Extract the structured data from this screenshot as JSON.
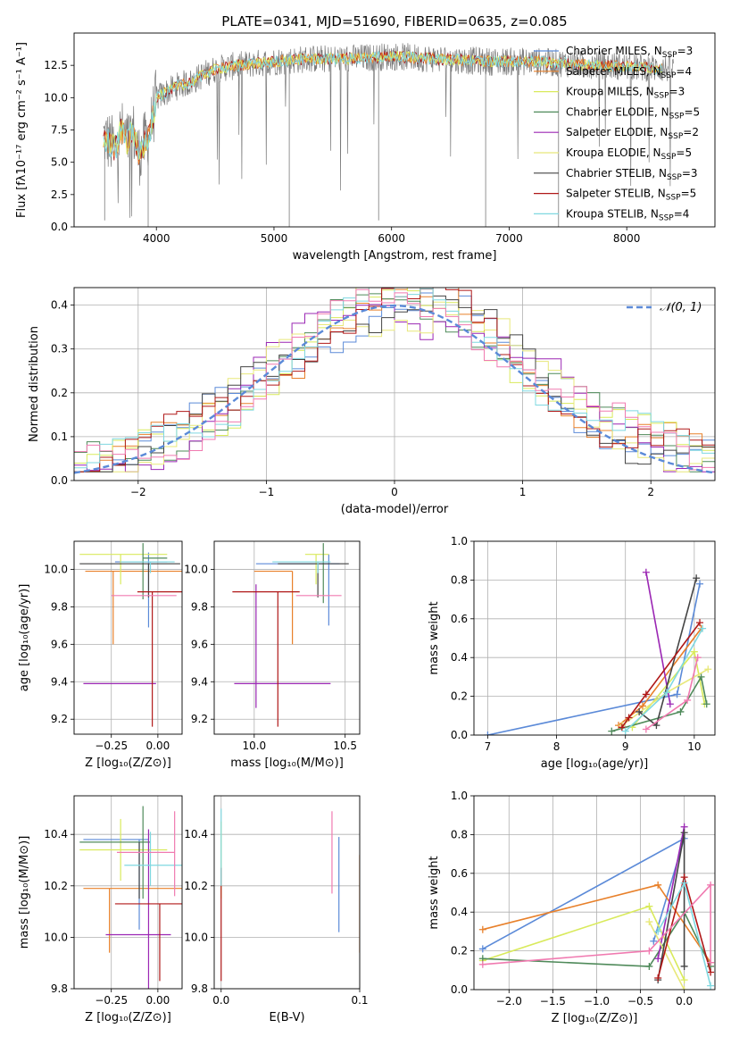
{
  "figure": {
    "title": "PLATE=0341, MJD=51690, FIBERID=0635, z=0.085"
  },
  "colors": {
    "Chabrier MILES": "#5b8ad8",
    "Salpeter MILES": "#e8802a",
    "Kroupa MILES": "#d9ea5c",
    "Chabrier ELODIE": "#4f8a5a",
    "Salpeter ELODIE": "#9b27b4",
    "Kroupa ELODIE": "#e8e87a",
    "Chabrier STELIB": "#444444",
    "Salpeter STELIB": "#b01818",
    "Kroupa STELIB": "#7fd8e0",
    "data": "#7a7a7a",
    "pink": "#f07ab0",
    "gauss": "#5b8ad8"
  },
  "chart_data": [
    {
      "id": "spectrum",
      "type": "line",
      "title": "PLATE=0341, MJD=51690, FIBERID=0635, z=0.085",
      "xlabel": "wavelength [Angstrom, rest frame]",
      "ylabel": "Flux [fλ10⁻¹⁷ erg cm⁻² s⁻¹ A⁻¹]",
      "xlim": [
        3300,
        8750
      ],
      "ylim": [
        0,
        15
      ],
      "xticks": [
        4000,
        5000,
        6000,
        7000,
        8000
      ],
      "yticks": [
        0.0,
        2.5,
        5.0,
        7.5,
        10.0,
        12.5
      ],
      "continuum": {
        "x": [
          3550,
          3600,
          3650,
          3700,
          3750,
          3800,
          3850,
          3900,
          3950,
          4000,
          4100,
          4200,
          4300,
          4400,
          4500,
          4700,
          5000,
          5300,
          5600,
          6000,
          6400,
          6800,
          7200,
          7600,
          8000,
          8400
        ],
        "y": [
          7.0,
          6.5,
          6.0,
          7.5,
          6.5,
          7.5,
          5.5,
          6.5,
          7.5,
          10.0,
          10.5,
          11.0,
          11.2,
          11.8,
          12.2,
          12.5,
          12.8,
          13.0,
          13.0,
          13.2,
          13.0,
          12.8,
          12.8,
          12.6,
          12.4,
          12.2
        ]
      },
      "legend": [
        {
          "name": "Chabrier MILES",
          "nssp": "3"
        },
        {
          "name": "Salpeter MILES",
          "nssp": "4"
        },
        {
          "name": "Kroupa MILES",
          "nssp": "3"
        },
        {
          "name": "Chabrier ELODIE",
          "nssp": "5"
        },
        {
          "name": "Salpeter ELODIE",
          "nssp": "2"
        },
        {
          "name": "Kroupa ELODIE",
          "nssp": "5"
        },
        {
          "name": "Chabrier STELIB",
          "nssp": "3"
        },
        {
          "name": "Salpeter STELIB",
          "nssp": "5"
        },
        {
          "name": "Kroupa STELIB",
          "nssp": "4"
        }
      ],
      "legend_placement": "upper right",
      "grid": false
    },
    {
      "id": "residuals",
      "type": "line",
      "xlabel": "(data-model)/error",
      "ylabel": "Normed distribution",
      "xlim": [
        -2.5,
        2.5
      ],
      "ylim": [
        0,
        0.44
      ],
      "xticks": [
        -2,
        -1,
        0,
        1,
        2
      ],
      "yticks": [
        0.0,
        0.1,
        0.2,
        0.3,
        0.4
      ],
      "gaussian_label": "𝒩(0, 1)",
      "legend_placement": "upper right",
      "grid": true
    },
    {
      "id": "age_vs_Z",
      "type": "scatter",
      "xlabel": "Z [log₁₀(Z/Z⊙)]",
      "ylabel": "age  [log₁₀(age/yr)]",
      "xlim": [
        -0.45,
        0.13
      ],
      "ylim": [
        9.12,
        10.15
      ],
      "xticks": [
        -0.25,
        0.0
      ],
      "yticks": [
        9.2,
        9.4,
        9.6,
        9.8,
        10.0
      ],
      "grid": true,
      "points": [
        {
          "model": "Chabrier MILES",
          "x": -0.05,
          "y": 10.04,
          "xerr": [
            0.18,
            0.1
          ],
          "yerr": [
            0.35,
            0.05
          ]
        },
        {
          "model": "Salpeter MILES",
          "x": -0.24,
          "y": 9.99,
          "xerr": [
            0.15,
            0.38
          ],
          "yerr": [
            0.39,
            0.0
          ]
        },
        {
          "model": "Kroupa MILES",
          "x": -0.2,
          "y": 10.08,
          "xerr": [
            0.22,
            0.25
          ],
          "yerr": [
            0.16,
            0.0
          ]
        },
        {
          "model": "Chabrier ELODIE",
          "x": -0.08,
          "y": 10.06,
          "xerr": [
            0.0,
            0.13
          ],
          "yerr": [
            0.22,
            0.08
          ]
        },
        {
          "model": "Salpeter ELODIE",
          "x": -0.28,
          "y": 9.39,
          "xerr": [
            0.12,
            0.27
          ],
          "yerr": [
            0.0,
            0.0
          ]
        },
        {
          "model": "Chabrier STELIB",
          "x": -0.05,
          "y": 10.03,
          "xerr": [
            0.37,
            0.17
          ],
          "yerr": [
            0.18,
            0.0
          ]
        },
        {
          "model": "Salpeter STELIB",
          "x": -0.03,
          "y": 9.88,
          "xerr": [
            0.08,
            0.2
          ],
          "yerr": [
            0.72,
            0.0
          ]
        },
        {
          "model": "Kroupa STELIB",
          "x": -0.04,
          "y": 10.04,
          "xerr": [
            0.16,
            0.13
          ],
          "yerr": [
            0.06,
            0.0
          ]
        },
        {
          "model": "pink",
          "x": -0.07,
          "y": 9.86,
          "xerr": [
            0.18,
            0.17
          ],
          "yerr": [
            0.0,
            0.0
          ]
        }
      ]
    },
    {
      "id": "age_vs_mass",
      "type": "scatter",
      "xlabel": "mass [log₁₀(M/M⊙)]",
      "xlim": [
        9.78,
        10.58
      ],
      "ylim": [
        9.12,
        10.15
      ],
      "xticks": [
        10.0,
        10.5
      ],
      "yticks": [
        9.2,
        9.4,
        9.6,
        9.8,
        10.0
      ],
      "grid": true,
      "points": [
        {
          "model": "Chabrier MILES",
          "x": 10.41,
          "y": 10.03,
          "xerr": [
            0.4,
            0.06
          ],
          "yerr": [
            0.33,
            0.05
          ]
        },
        {
          "model": "Salpeter MILES",
          "x": 10.21,
          "y": 9.99,
          "xerr": [
            0.21,
            0.0
          ],
          "yerr": [
            0.39,
            0.0
          ]
        },
        {
          "model": "Kroupa MILES",
          "x": 10.34,
          "y": 10.08,
          "xerr": [
            0.06,
            0.07
          ],
          "yerr": [
            0.16,
            0.0
          ]
        },
        {
          "model": "Chabrier ELODIE",
          "x": 10.38,
          "y": 10.06,
          "xerr": [
            0.0,
            0.0
          ],
          "yerr": [
            0.24,
            0.08
          ]
        },
        {
          "model": "Salpeter ELODIE",
          "x": 10.01,
          "y": 9.39,
          "xerr": [
            0.12,
            0.41
          ],
          "yerr": [
            0.13,
            0.53
          ]
        },
        {
          "model": "Chabrier STELIB",
          "x": 10.35,
          "y": 10.03,
          "xerr": [
            0.22,
            0.17
          ],
          "yerr": [
            0.18,
            0.0
          ]
        },
        {
          "model": "Salpeter STELIB",
          "x": 10.13,
          "y": 9.88,
          "xerr": [
            0.25,
            0.12
          ],
          "yerr": [
            0.72,
            0.0
          ]
        },
        {
          "model": "Kroupa STELIB",
          "x": 10.35,
          "y": 10.04,
          "xerr": [
            0.25,
            0.07
          ],
          "yerr": [
            0.06,
            0.0
          ]
        },
        {
          "model": "pink",
          "x": 10.33,
          "y": 9.86,
          "xerr": [
            0.1,
            0.15
          ],
          "yerr": [
            0.0,
            0.0
          ]
        }
      ]
    },
    {
      "id": "weight_vs_age",
      "type": "line",
      "xlabel": "age  [log₁₀(age/yr)]",
      "ylabel": "mass weight",
      "xlim": [
        6.8,
        10.3
      ],
      "ylim": [
        0,
        1.0
      ],
      "xticks": [
        7,
        8,
        9,
        10
      ],
      "yticks": [
        0.0,
        0.2,
        0.4,
        0.6,
        0.8,
        1.0
      ],
      "grid": true,
      "series": [
        {
          "model": "Chabrier MILES",
          "x": [
            7.0,
            9.75,
            10.08
          ],
          "y": [
            0.0,
            0.21,
            0.78
          ]
        },
        {
          "model": "Salpeter MILES",
          "x": [
            8.9,
            9.25,
            10.1
          ],
          "y": [
            0.05,
            0.15,
            0.55
          ]
        },
        {
          "model": "Kroupa MILES",
          "x": [
            9.1,
            10.0,
            10.15
          ],
          "y": [
            0.04,
            0.43,
            0.16
          ]
        },
        {
          "model": "Chabrier ELODIE",
          "x": [
            8.8,
            9.8,
            10.1,
            10.18
          ],
          "y": [
            0.02,
            0.12,
            0.3,
            0.16
          ]
        },
        {
          "model": "Salpeter ELODIE",
          "x": [
            9.3,
            9.65
          ],
          "y": [
            0.84,
            0.16
          ]
        },
        {
          "model": "Kroupa ELODIE",
          "x": [
            8.95,
            9.6,
            10.2
          ],
          "y": [
            0.05,
            0.22,
            0.34
          ]
        },
        {
          "model": "Chabrier STELIB",
          "x": [
            9.2,
            9.45,
            10.03
          ],
          "y": [
            0.12,
            0.05,
            0.81
          ]
        },
        {
          "model": "Salpeter STELIB",
          "x": [
            8.95,
            9.05,
            9.3,
            10.08
          ],
          "y": [
            0.04,
            0.09,
            0.21,
            0.58
          ]
        },
        {
          "model": "Kroupa STELIB",
          "x": [
            9.0,
            9.6,
            10.12
          ],
          "y": [
            0.02,
            0.22,
            0.55
          ]
        },
        {
          "model": "pink",
          "x": [
            9.3,
            9.9,
            10.05
          ],
          "y": [
            0.03,
            0.18,
            0.4
          ]
        }
      ]
    },
    {
      "id": "mass_vs_Z",
      "type": "scatter",
      "xlabel": "Z [log₁₀(Z/Z⊙)]",
      "ylabel": "mass [log₁₀(M/M⊙)]",
      "xlim": [
        -0.45,
        0.13
      ],
      "ylim": [
        9.8,
        10.55
      ],
      "xticks": [
        -0.25,
        0.0
      ],
      "yticks": [
        9.8,
        10.0,
        10.2,
        10.4
      ],
      "grid": true,
      "points": [
        {
          "model": "Chabrier MILES",
          "x": -0.1,
          "y": 10.38,
          "xerr": [
            0.3,
            0.05
          ],
          "yerr": [
            0.35,
            0.0
          ]
        },
        {
          "model": "Salpeter MILES",
          "x": -0.26,
          "y": 10.19,
          "xerr": [
            0.14,
            0.4
          ],
          "yerr": [
            0.25,
            0.0
          ]
        },
        {
          "model": "Kroupa MILES",
          "x": -0.2,
          "y": 10.34,
          "xerr": [
            0.22,
            0.25
          ],
          "yerr": [
            0.12,
            0.12
          ]
        },
        {
          "model": "Chabrier ELODIE",
          "x": -0.08,
          "y": 10.37,
          "xerr": [
            0.34,
            0.04
          ],
          "yerr": [
            0.22,
            0.14
          ]
        },
        {
          "model": "Salpeter ELODIE",
          "x": -0.05,
          "y": 10.01,
          "xerr": [
            0.23,
            0.12
          ],
          "yerr": [
            0.25,
            0.41
          ]
        },
        {
          "model": "Chabrier STELIB",
          "x": -0.1,
          "y": 10.37,
          "xerr": [
            0.0,
            0.0
          ],
          "yerr": [
            0.22,
            0.0
          ]
        },
        {
          "model": "Salpeter STELIB",
          "x": 0.01,
          "y": 10.13,
          "xerr": [
            0.24,
            0.2
          ],
          "yerr": [
            0.3,
            0.0
          ]
        },
        {
          "model": "Kroupa STELIB",
          "x": -0.04,
          "y": 10.28,
          "xerr": [
            0.14,
            0.17
          ],
          "yerr": [
            0.08,
            0.13
          ]
        },
        {
          "model": "pink",
          "x": 0.09,
          "y": 10.33,
          "xerr": [
            0.31,
            0.0
          ],
          "yerr": [
            0.17,
            0.16
          ]
        }
      ]
    },
    {
      "id": "mass_vs_EBV",
      "type": "scatter",
      "xlabel": "E(B-V)",
      "xlim": [
        -0.005,
        0.1
      ],
      "ylim": [
        9.8,
        10.55
      ],
      "xticks": [
        0.0,
        0.1
      ],
      "yticks": [
        9.8,
        10.0,
        10.2,
        10.4
      ],
      "grid": true,
      "points": [
        {
          "model": "Chabrier MILES",
          "x": 0.085,
          "y": 10.2,
          "xerr": [
            0,
            0
          ],
          "yerr": [
            0.18,
            0.19
          ]
        },
        {
          "model": "Salpeter MILES",
          "x": 0.1,
          "y": 10.13,
          "xerr": [
            0,
            0
          ],
          "yerr": [
            0.19,
            0.19
          ]
        },
        {
          "model": "Kroupa MILES",
          "x": 0.0,
          "y": 10.3,
          "xerr": [
            0,
            0
          ],
          "yerr": [
            0.15,
            0.15
          ]
        },
        {
          "model": "Salpeter STELIB",
          "x": 0.0,
          "y": 10.05,
          "xerr": [
            0,
            0
          ],
          "yerr": [
            0.22,
            0.22
          ]
        },
        {
          "model": "Kroupa STELIB",
          "x": 0.0,
          "y": 10.35,
          "xerr": [
            0,
            0
          ],
          "yerr": [
            0.15,
            0.15
          ]
        },
        {
          "model": "pink",
          "x": 0.08,
          "y": 10.33,
          "xerr": [
            0,
            0
          ],
          "yerr": [
            0.16,
            0.16
          ]
        }
      ]
    },
    {
      "id": "weight_vs_Z",
      "type": "line",
      "xlabel": "Z [log₁₀(Z/Z⊙)]",
      "ylabel": "mass weight",
      "xlim": [
        -2.4,
        0.35
      ],
      "ylim": [
        0,
        1.0
      ],
      "xticks": [
        -2.0,
        -1.5,
        -1.0,
        -0.5,
        0.0
      ],
      "yticks": [
        0.0,
        0.2,
        0.4,
        0.6,
        0.8,
        1.0
      ],
      "grid": true,
      "series": [
        {
          "model": "Chabrier MILES",
          "x": [
            -2.3,
            0.0,
            -0.35
          ],
          "y": [
            0.21,
            0.78,
            0.25
          ]
        },
        {
          "model": "Salpeter MILES",
          "x": [
            -2.3,
            -0.3,
            0.3
          ],
          "y": [
            0.31,
            0.54,
            0.14
          ]
        },
        {
          "model": "Kroupa MILES",
          "x": [
            -2.3,
            -0.4,
            0.0
          ],
          "y": [
            0.15,
            0.43,
            0.05
          ]
        },
        {
          "model": "Chabrier ELODIE",
          "x": [
            -2.3,
            -0.4,
            0.0,
            0.3
          ],
          "y": [
            0.16,
            0.12,
            0.4,
            0.12
          ]
        },
        {
          "model": "Salpeter ELODIE",
          "x": [
            0.0,
            -0.3
          ],
          "y": [
            0.84,
            0.16
          ]
        },
        {
          "model": "Kroupa ELODIE",
          "x": [
            -0.4,
            0.0
          ],
          "y": [
            0.35,
            0.0
          ]
        },
        {
          "model": "Chabrier STELIB",
          "x": [
            -0.3,
            0.0,
            0.0
          ],
          "y": [
            0.05,
            0.81,
            0.12
          ]
        },
        {
          "model": "Salpeter STELIB",
          "x": [
            -0.3,
            0.0,
            0.3
          ],
          "y": [
            0.06,
            0.58,
            0.09
          ]
        },
        {
          "model": "Kroupa STELIB",
          "x": [
            -0.3,
            0.0,
            0.3
          ],
          "y": [
            0.3,
            0.55,
            0.02
          ]
        },
        {
          "model": "pink",
          "x": [
            -2.3,
            -0.4,
            0.3,
            0.3
          ],
          "y": [
            0.13,
            0.2,
            0.54,
            0.14
          ]
        }
      ]
    }
  ]
}
